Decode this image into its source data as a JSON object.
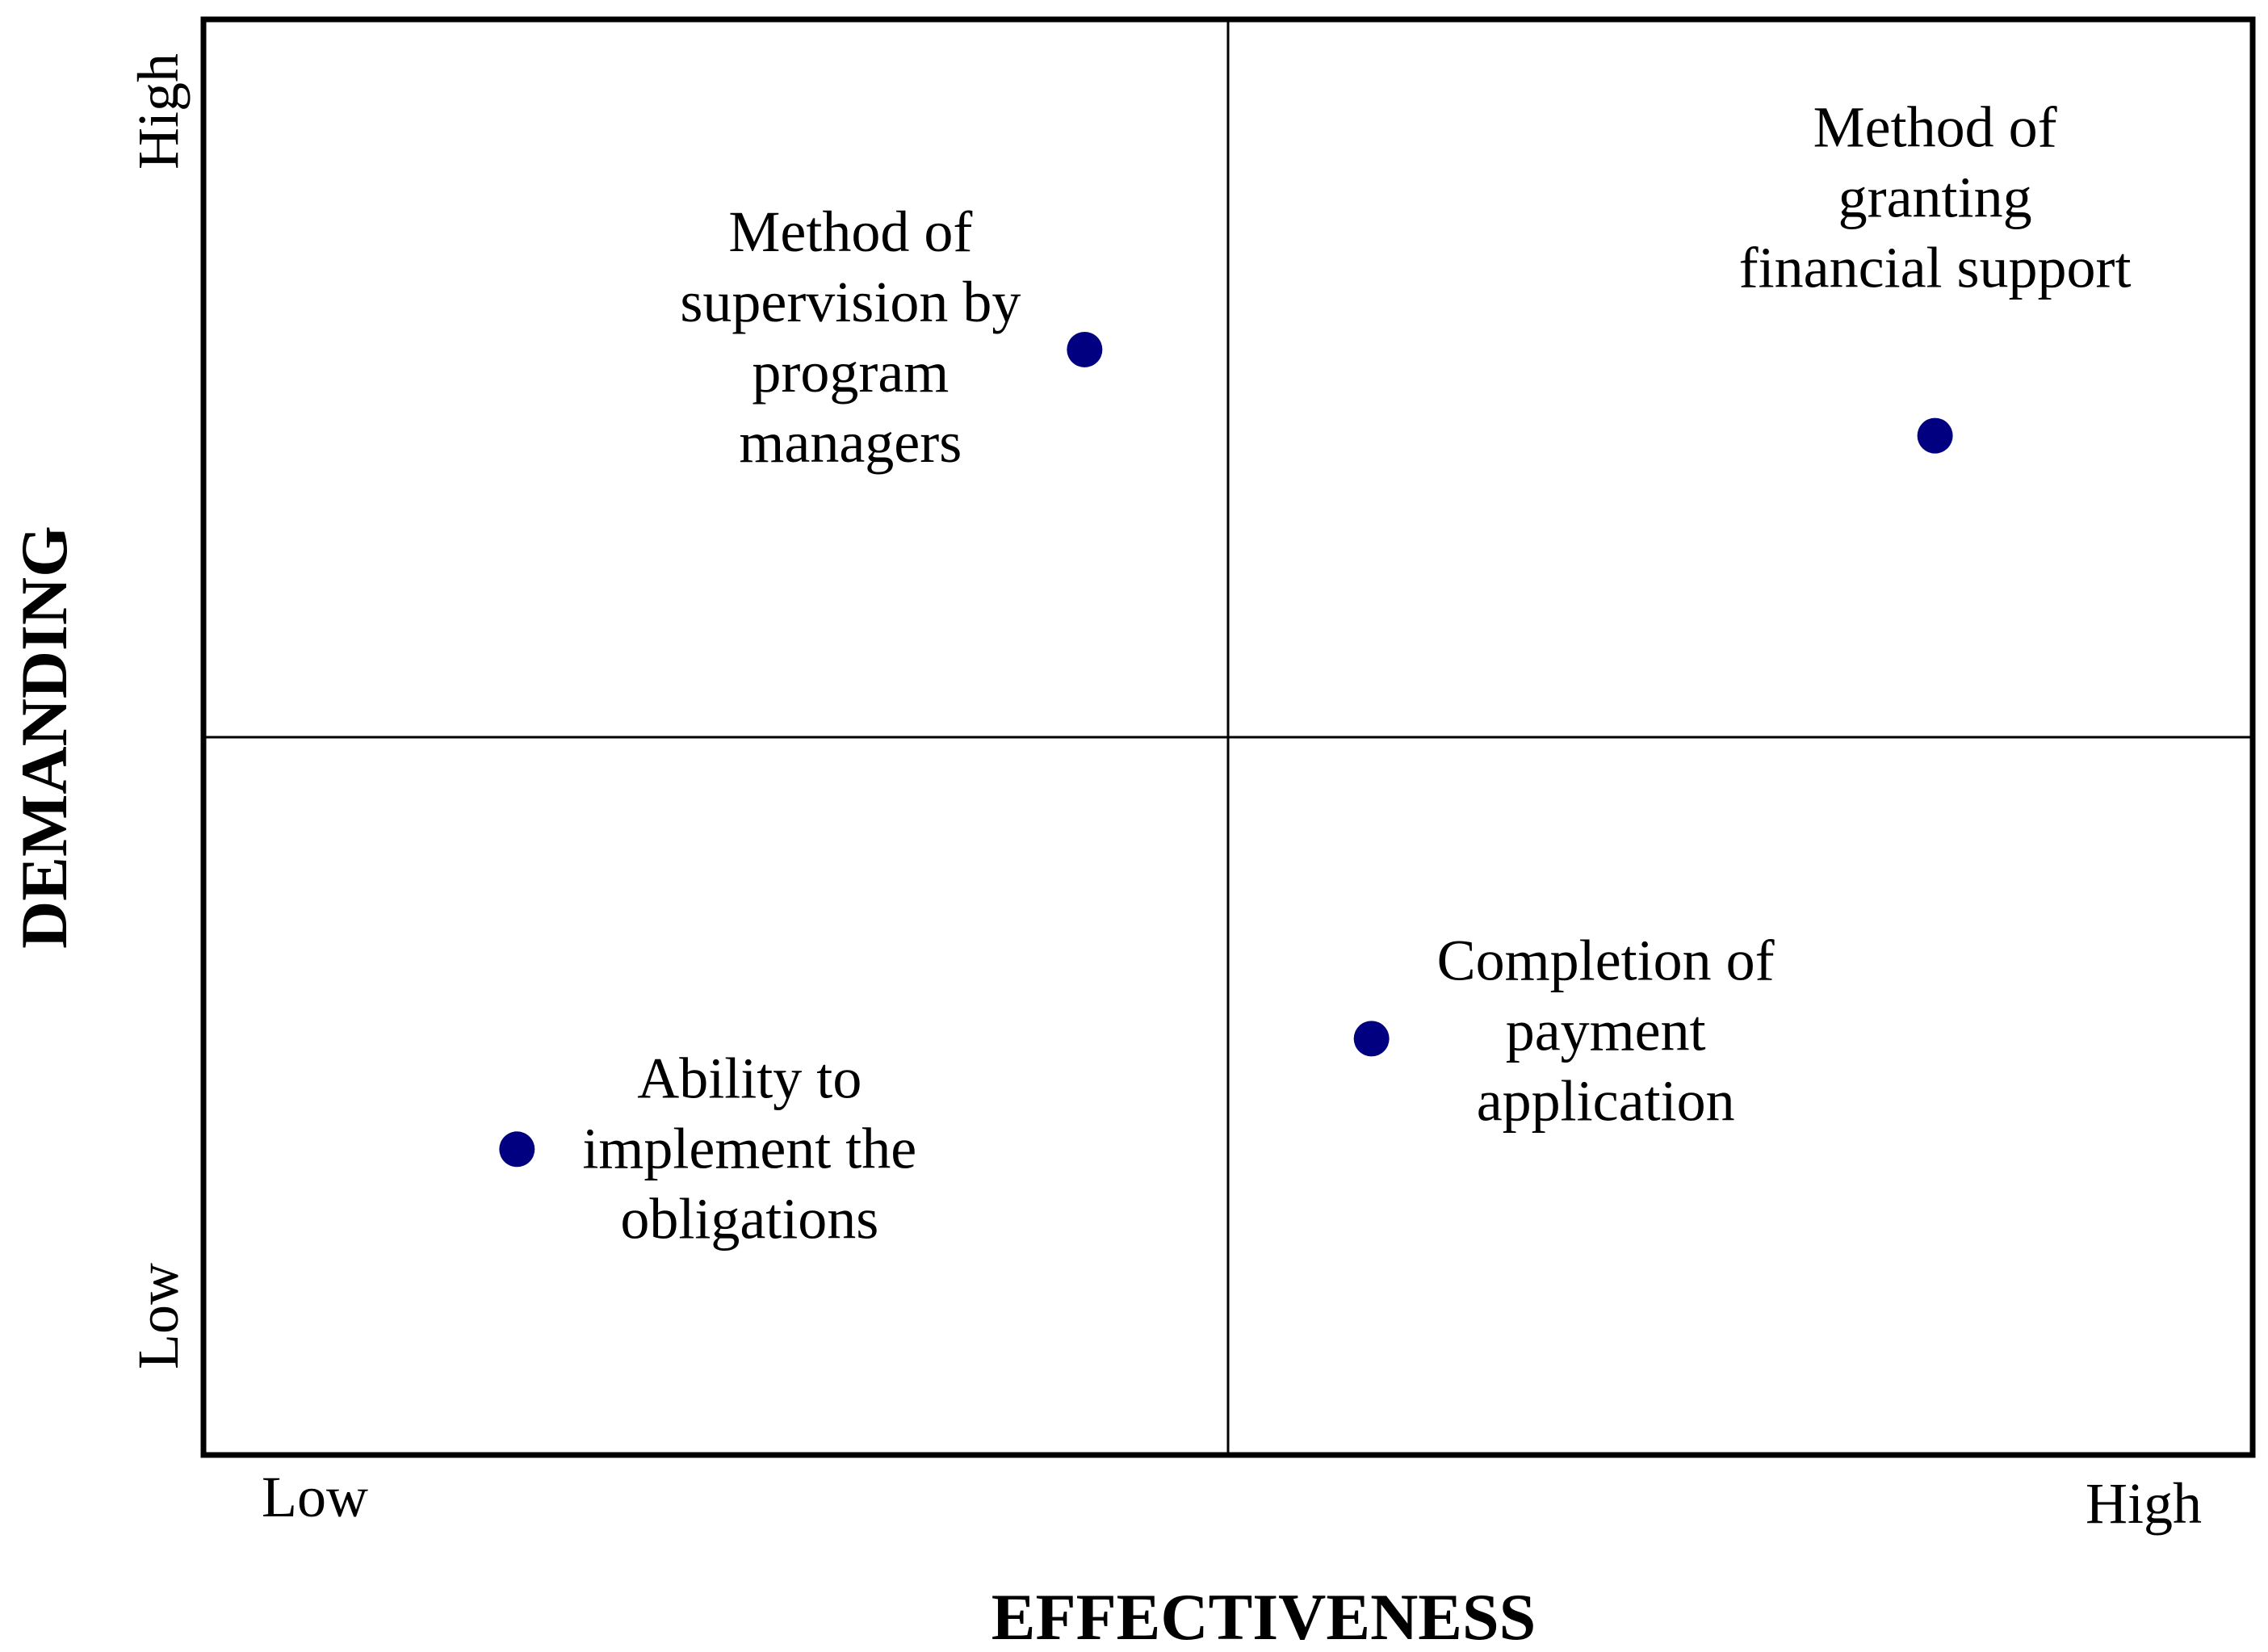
{
  "chart_data": {
    "type": "scatter",
    "title": "",
    "xlabel": "EFFECTIVENESS",
    "ylabel": "DEMANDING",
    "x_tick_labels": {
      "low": "Low",
      "high": "High"
    },
    "y_tick_labels": {
      "low": "Low",
      "high": "High"
    },
    "xlim": [
      0,
      10
    ],
    "ylim": [
      0,
      10
    ],
    "quadrant_split": {
      "x": 5,
      "y": 5
    },
    "grid": false,
    "legend": "none",
    "point_color": "#000080",
    "points": [
      {
        "label_lines": [
          "Method of",
          "supervision by",
          "program",
          "managers"
        ],
        "x": 4.3,
        "y": 7.7
      },
      {
        "label_lines": [
          "Method of",
          "granting",
          "financial support"
        ],
        "x": 8.45,
        "y": 7.1
      },
      {
        "label_lines": [
          "Ability to",
          "implement the",
          "obligations"
        ],
        "x": 1.53,
        "y": 2.13
      },
      {
        "label_lines": [
          "Completion of",
          "payment",
          "application"
        ],
        "x": 5.7,
        "y": 2.9
      }
    ]
  }
}
